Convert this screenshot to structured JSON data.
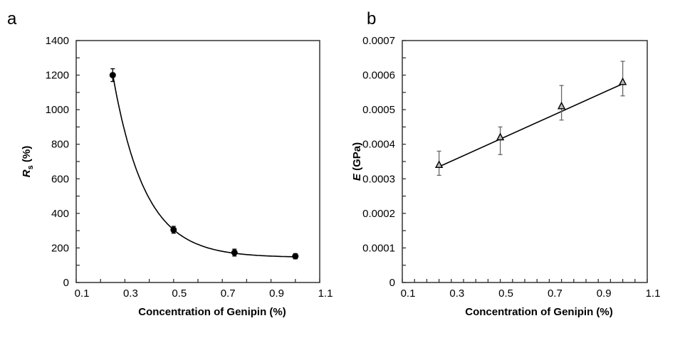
{
  "chart_data": [
    {
      "panel_label": "a",
      "type": "scatter",
      "xlabel": "Concentration of Genipin (%)",
      "ylabel_main": "R",
      "ylabel_sub": "s",
      "ylabel_rest": " (%)",
      "xlim": [
        0.1,
        1.1
      ],
      "ylim": [
        0,
        1400
      ],
      "xticks": [
        "0.1",
        "0.3",
        "0.5",
        "0.7",
        "0.9",
        "1.1"
      ],
      "yticks": [
        "0",
        "200",
        "400",
        "600",
        "800",
        "1000",
        "1200",
        "1400"
      ],
      "marker": "circle",
      "x": [
        0.25,
        0.5,
        0.75,
        1.0
      ],
      "y": [
        1200,
        305,
        173,
        152
      ],
      "error": [
        37,
        20,
        20,
        15
      ],
      "fit": {
        "kind": "exponential-decay",
        "asymptote": 145,
        "amplitude": 6990,
        "rate": 7.55,
        "x_range": [
          0.25,
          1.0
        ]
      },
      "grid": false
    },
    {
      "panel_label": "b",
      "type": "scatter",
      "xlabel": "Concentration of Genipin (%)",
      "ylabel_main": "E",
      "ylabel_sub": "",
      "ylabel_rest": " (GPa)",
      "xlim": [
        0.1,
        1.1
      ],
      "ylim": [
        0,
        0.0007
      ],
      "xticks": [
        "0.1",
        "0.3",
        "0.5",
        "0.7",
        "0.9",
        "1.1"
      ],
      "yticks": [
        "0",
        "0.0001",
        "0.0002",
        "0.0003",
        "0.0004",
        "0.0005",
        "0.0006",
        "0.0007"
      ],
      "marker": "triangle",
      "x": [
        0.25,
        0.5,
        0.75,
        1.0
      ],
      "y": [
        0.00034,
        0.00042,
        0.00051,
        0.00058
      ],
      "error_low": [
        0.00031,
        0.00037,
        0.00047,
        0.00054
      ],
      "error_high": [
        0.00038,
        0.00045,
        0.00057,
        0.00064
      ],
      "fit": {
        "kind": "linear",
        "points": [
          [
            0.25,
            0.000335
          ],
          [
            1.0,
            0.000575
          ]
        ]
      },
      "grid": false
    }
  ]
}
